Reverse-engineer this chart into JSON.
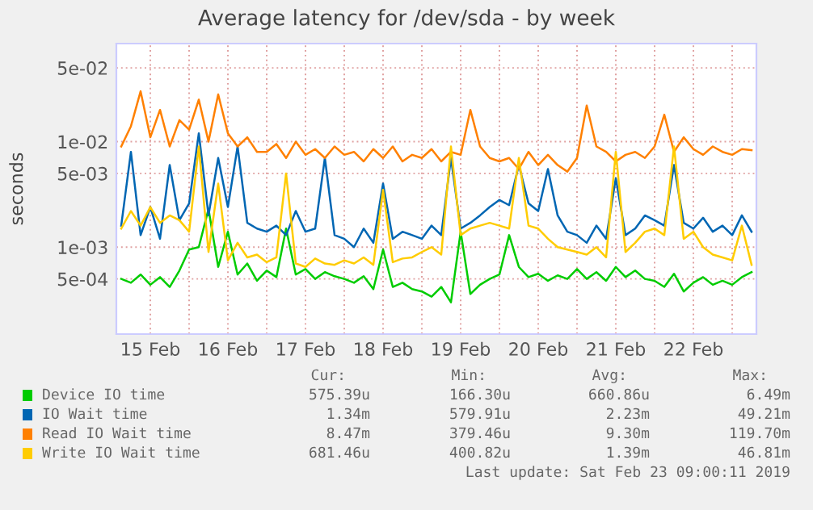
{
  "chart_data": {
    "type": "line",
    "title": "Average latency for /dev/sda - by week",
    "ylabel": "seconds",
    "x": [
      "2019-02-15T03:00",
      "2019-02-15T06:00",
      "2019-02-15T09:00",
      "2019-02-15T12:00",
      "2019-02-15T15:00",
      "2019-02-15T18:00",
      "2019-02-15T21:00",
      "2019-02-16T00:00",
      "2019-02-16T03:00",
      "2019-02-16T06:00",
      "2019-02-16T09:00",
      "2019-02-16T12:00",
      "2019-02-16T15:00",
      "2019-02-16T18:00",
      "2019-02-16T21:00",
      "2019-02-17T00:00",
      "2019-02-17T03:00",
      "2019-02-17T06:00",
      "2019-02-17T09:00",
      "2019-02-17T12:00",
      "2019-02-17T15:00",
      "2019-02-17T18:00",
      "2019-02-17T21:00",
      "2019-02-18T00:00",
      "2019-02-18T03:00",
      "2019-02-18T06:00",
      "2019-02-18T09:00",
      "2019-02-18T12:00",
      "2019-02-18T15:00",
      "2019-02-18T18:00",
      "2019-02-18T21:00",
      "2019-02-19T00:00",
      "2019-02-19T03:00",
      "2019-02-19T06:00",
      "2019-02-19T09:00",
      "2019-02-19T12:00",
      "2019-02-19T15:00",
      "2019-02-19T18:00",
      "2019-02-19T21:00",
      "2019-02-20T00:00",
      "2019-02-20T03:00",
      "2019-02-20T06:00",
      "2019-02-20T09:00",
      "2019-02-20T12:00",
      "2019-02-20T15:00",
      "2019-02-20T18:00",
      "2019-02-20T21:00",
      "2019-02-21T00:00",
      "2019-02-21T03:00",
      "2019-02-21T06:00",
      "2019-02-21T09:00",
      "2019-02-21T12:00",
      "2019-02-21T15:00",
      "2019-02-21T18:00",
      "2019-02-21T21:00",
      "2019-02-22T00:00",
      "2019-02-22T03:00",
      "2019-02-22T06:00",
      "2019-02-22T09:00",
      "2019-02-22T12:00",
      "2019-02-22T15:00",
      "2019-02-22T18:00",
      "2019-02-22T21:00",
      "2019-02-23T00:00",
      "2019-02-23T03:00",
      "2019-02-23T06:00"
    ],
    "series": [
      {
        "name": "Device IO time",
        "color": "#00cc00",
        "values": [
          0.0005,
          0.00046,
          0.00055,
          0.00044,
          0.00052,
          0.00042,
          0.0006,
          0.00095,
          0.001,
          0.0023,
          0.00065,
          0.0014,
          0.00055,
          0.0007,
          0.00048,
          0.0006,
          0.00052,
          0.0015,
          0.00055,
          0.00062,
          0.0005,
          0.00058,
          0.00053,
          0.0005,
          0.00046,
          0.00053,
          0.0004,
          0.00095,
          0.00042,
          0.00046,
          0.0004,
          0.00038,
          0.00034,
          0.00042,
          0.0003,
          0.0014,
          0.00036,
          0.00044,
          0.0005,
          0.00055,
          0.0013,
          0.00065,
          0.00052,
          0.00056,
          0.00048,
          0.00054,
          0.0005,
          0.00062,
          0.0005,
          0.00058,
          0.00048,
          0.00065,
          0.00052,
          0.0006,
          0.0005,
          0.00048,
          0.00042,
          0.00056,
          0.00038,
          0.00046,
          0.00052,
          0.00044,
          0.00048,
          0.00044,
          0.00052,
          0.00058
        ]
      },
      {
        "name": "IO Wait time",
        "color": "#0066b3",
        "values": [
          0.0016,
          0.008,
          0.0013,
          0.0024,
          0.0012,
          0.006,
          0.0018,
          0.0026,
          0.012,
          0.002,
          0.007,
          0.0024,
          0.009,
          0.0017,
          0.0015,
          0.0014,
          0.0016,
          0.0013,
          0.0022,
          0.0014,
          0.0015,
          0.007,
          0.0013,
          0.0012,
          0.001,
          0.0015,
          0.0011,
          0.004,
          0.0012,
          0.0014,
          0.0013,
          0.0012,
          0.0016,
          0.0013,
          0.007,
          0.0015,
          0.0017,
          0.002,
          0.0024,
          0.0028,
          0.0025,
          0.006,
          0.0026,
          0.0022,
          0.0055,
          0.002,
          0.0014,
          0.0013,
          0.0011,
          0.0016,
          0.0012,
          0.0045,
          0.0013,
          0.0015,
          0.002,
          0.0018,
          0.0016,
          0.006,
          0.0017,
          0.0015,
          0.0019,
          0.0014,
          0.0016,
          0.0013,
          0.002,
          0.0014
        ]
      },
      {
        "name": "Read IO Wait time",
        "color": "#ff8000",
        "values": [
          0.009,
          0.014,
          0.03,
          0.011,
          0.02,
          0.009,
          0.016,
          0.013,
          0.025,
          0.01,
          0.028,
          0.012,
          0.009,
          0.011,
          0.008,
          0.008,
          0.0095,
          0.007,
          0.01,
          0.0075,
          0.0085,
          0.007,
          0.009,
          0.0075,
          0.008,
          0.0065,
          0.0085,
          0.007,
          0.009,
          0.0065,
          0.0075,
          0.007,
          0.0085,
          0.0065,
          0.008,
          0.0075,
          0.02,
          0.009,
          0.007,
          0.0065,
          0.007,
          0.0055,
          0.008,
          0.006,
          0.0075,
          0.006,
          0.0052,
          0.007,
          0.022,
          0.009,
          0.008,
          0.0065,
          0.0075,
          0.008,
          0.007,
          0.009,
          0.018,
          0.008,
          0.011,
          0.0085,
          0.0075,
          0.009,
          0.008,
          0.0075,
          0.0085,
          0.0083
        ]
      },
      {
        "name": "Write IO Wait time",
        "color": "#ffcc00",
        "values": [
          0.0015,
          0.0022,
          0.0016,
          0.0024,
          0.0017,
          0.002,
          0.0018,
          0.0014,
          0.009,
          0.0009,
          0.004,
          0.00075,
          0.0011,
          0.0008,
          0.00085,
          0.00072,
          0.0008,
          0.005,
          0.0007,
          0.00065,
          0.00078,
          0.0007,
          0.00068,
          0.00075,
          0.0007,
          0.0008,
          0.00068,
          0.0035,
          0.00072,
          0.00078,
          0.0008,
          0.0009,
          0.001,
          0.00085,
          0.009,
          0.0013,
          0.0015,
          0.0016,
          0.0017,
          0.0016,
          0.0015,
          0.007,
          0.0016,
          0.0015,
          0.0012,
          0.001,
          0.00095,
          0.0009,
          0.00085,
          0.001,
          0.0008,
          0.008,
          0.0009,
          0.0011,
          0.0014,
          0.0015,
          0.0013,
          0.009,
          0.0012,
          0.0014,
          0.001,
          0.00085,
          0.0008,
          0.00075,
          0.0016,
          0.00068
        ]
      }
    ],
    "log": true,
    "ylim": [
      0.00015,
      0.085
    ],
    "yticks": [
      {
        "value": 0.05,
        "label": "5e-02"
      },
      {
        "value": 0.01,
        "label": "1e-02"
      },
      {
        "value": 0.005,
        "label": "5e-03"
      },
      {
        "value": 0.001,
        "label": "1e-03"
      },
      {
        "value": 0.0005,
        "label": "5e-04"
      }
    ],
    "xlim": [
      "2019-02-15T01:30",
      "2019-02-23T07:30"
    ],
    "xticks": [
      {
        "value": "2019-02-15T12:00",
        "label": "15 Feb"
      },
      {
        "value": "2019-02-16T00:00",
        "label": null
      },
      {
        "value": "2019-02-16T12:00",
        "label": "16 Feb"
      },
      {
        "value": "2019-02-17T00:00",
        "label": null
      },
      {
        "value": "2019-02-17T12:00",
        "label": "17 Feb"
      },
      {
        "value": "2019-02-18T00:00",
        "label": null
      },
      {
        "value": "2019-02-18T12:00",
        "label": "18 Feb"
      },
      {
        "value": "2019-02-19T00:00",
        "label": null
      },
      {
        "value": "2019-02-19T12:00",
        "label": "19 Feb"
      },
      {
        "value": "2019-02-20T00:00",
        "label": null
      },
      {
        "value": "2019-02-20T12:00",
        "label": "20 Feb"
      },
      {
        "value": "2019-02-21T00:00",
        "label": null
      },
      {
        "value": "2019-02-21T12:00",
        "label": "21 Feb"
      },
      {
        "value": "2019-02-22T00:00",
        "label": null
      },
      {
        "value": "2019-02-22T12:00",
        "label": "22 Feb"
      },
      {
        "value": "2019-02-23T00:00",
        "label": null
      }
    ],
    "grid": true,
    "legend": "bottom",
    "marker": "none",
    "line_style": "solid",
    "annotations": [
      "Cur:",
      "Min:",
      "Avg:",
      "Max:",
      "575.39u",
      "166.30u",
      "660.86u",
      "6.49m",
      "1.34m",
      "579.91u",
      "2.23m",
      "49.21m",
      "8.47m",
      "379.46u",
      "9.30m",
      "119.70m",
      "681.46u",
      "400.82u",
      "1.39m",
      "46.81m",
      "Last update: Sat Feb 23 09:00:11 2019"
    ]
  }
}
